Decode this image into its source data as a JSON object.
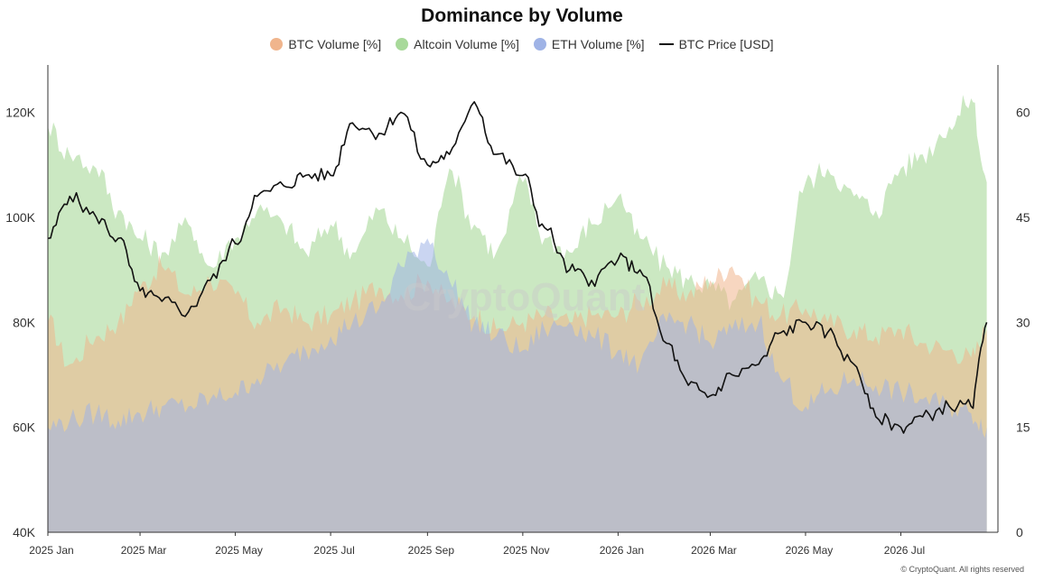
{
  "chart_data": {
    "type": "area",
    "title": "Dominance by Volume",
    "watermark": "CryptoQuant",
    "credit": "© CryptoQuant. All rights reserved",
    "x_ticks": [
      "2025 Jan",
      "2025 Mar",
      "2025 May",
      "2025 Jul",
      "2025 Sep",
      "2025 Nov",
      "2026 Jan",
      "2026 Mar",
      "2026 May",
      "2026 Jul"
    ],
    "x_range": [
      "2025-01-01",
      "2026-08-31"
    ],
    "y_left": {
      "ticks": [
        "40K",
        "60K",
        "80K",
        "100K",
        "120K"
      ],
      "values": [
        40000,
        60000,
        80000,
        100000,
        120000
      ],
      "range": [
        40000,
        128000
      ]
    },
    "y_right": {
      "ticks": [
        "0",
        "15",
        "30",
        "45",
        "60"
      ],
      "values": [
        0,
        15,
        30,
        45,
        60
      ],
      "range": [
        0,
        66
      ]
    },
    "x": [
      "2025-01-01",
      "2025-01-15",
      "2025-02-01",
      "2025-02-15",
      "2025-03-01",
      "2025-03-15",
      "2025-04-01",
      "2025-04-15",
      "2025-05-01",
      "2025-05-15",
      "2025-06-01",
      "2025-06-15",
      "2025-07-01",
      "2025-07-15",
      "2025-08-01",
      "2025-08-15",
      "2025-09-01",
      "2025-09-15",
      "2025-10-01",
      "2025-10-15",
      "2025-11-01",
      "2025-11-15",
      "2025-12-01",
      "2025-12-15",
      "2026-01-01",
      "2026-01-15",
      "2026-02-01",
      "2026-02-15",
      "2026-03-01",
      "2026-03-15",
      "2026-04-01",
      "2026-04-15",
      "2026-05-01",
      "2026-05-15",
      "2026-06-01",
      "2026-06-15",
      "2026-07-01",
      "2026-07-15",
      "2026-08-01",
      "2026-08-15",
      "2026-08-25"
    ],
    "series": [
      {
        "name": "BTC Volume [%]",
        "axis": "right",
        "color": "#f0b58d",
        "values": [
          30,
          24,
          28,
          30,
          35,
          38,
          34,
          36,
          34,
          30,
          32,
          30,
          31,
          33,
          35,
          34,
          36,
          33,
          31,
          29,
          30,
          31,
          30,
          31,
          31,
          33,
          35,
          34,
          36,
          38,
          33,
          31,
          32,
          30,
          29,
          28,
          29,
          27,
          26,
          25,
          29
        ]
      },
      {
        "name": "Altcoin Volume [%]",
        "axis": "right",
        "color": "#a8d99a",
        "values": [
          58,
          54,
          52,
          46,
          42,
          40,
          44,
          38,
          42,
          46,
          44,
          40,
          44,
          40,
          46,
          42,
          38,
          52,
          44,
          40,
          50,
          42,
          40,
          44,
          48,
          42,
          38,
          36,
          35,
          33,
          36,
          34,
          50,
          52,
          48,
          46,
          52,
          54,
          58,
          62,
          50
        ]
      },
      {
        "name": "ETH Volume [%]",
        "axis": "right",
        "color": "#9fb3e6",
        "values": [
          15,
          16,
          17,
          16,
          17,
          18,
          18,
          19,
          20,
          22,
          24,
          26,
          28,
          30,
          32,
          38,
          42,
          36,
          30,
          28,
          26,
          29,
          30,
          28,
          26,
          24,
          30,
          30,
          27,
          29,
          30,
          22,
          18,
          20,
          22,
          21,
          20,
          19,
          18,
          17,
          15
        ]
      },
      {
        "name": "BTC Price [USD]",
        "axis": "left",
        "color": "#111111",
        "values": [
          96000,
          104000,
          100000,
          96000,
          86000,
          84000,
          82000,
          88000,
          95000,
          104000,
          106000,
          108000,
          108000,
          118000,
          116000,
          120000,
          110000,
          112000,
          122000,
          112000,
          108000,
          98000,
          90000,
          88000,
          92000,
          90000,
          76000,
          68000,
          66000,
          70000,
          72000,
          78000,
          80000,
          78000,
          72000,
          62000,
          60000,
          62000,
          64000,
          64000,
          80000
        ]
      }
    ]
  }
}
